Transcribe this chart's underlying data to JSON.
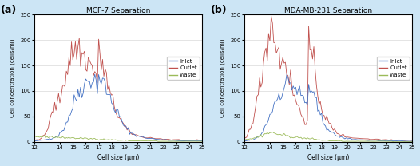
{
  "title_a": "MCF-7 Separation",
  "title_b": "MDA-MB-231 Separation",
  "label_a": "(a)",
  "label_b": "(b)",
  "xlabel": "Cell size (μm)",
  "ylabel": "Cell concentration (cells/ml)",
  "ylim": [
    0,
    250
  ],
  "yticks": [
    0,
    50,
    100,
    150,
    200,
    250
  ],
  "xlim": [
    12,
    25
  ],
  "xticks": [
    12,
    14,
    15,
    16,
    17,
    18,
    19,
    20,
    21,
    22,
    23,
    24,
    25
  ],
  "legend_labels": [
    "Inlet",
    "Outlet",
    "Waste"
  ],
  "colors": {
    "inlet": "#4472c4",
    "outlet": "#c0504d",
    "waste": "#9bbb59"
  },
  "background_color": "#cce5f5",
  "plot_bg": "#ffffff",
  "grid_color": "#d0d0d0",
  "mcf7_x": [
    12.0,
    12.1,
    12.2,
    12.3,
    12.4,
    12.5,
    12.6,
    12.7,
    12.8,
    12.9,
    13.0,
    13.1,
    13.2,
    13.3,
    13.4,
    13.5,
    13.6,
    13.7,
    13.8,
    13.9,
    14.0,
    14.1,
    14.2,
    14.3,
    14.4,
    14.5,
    14.6,
    14.7,
    14.8,
    14.9,
    15.0,
    15.1,
    15.2,
    15.3,
    15.4,
    15.5,
    15.6,
    15.7,
    15.8,
    15.9,
    16.0,
    16.1,
    16.2,
    16.3,
    16.4,
    16.5,
    16.6,
    16.7,
    16.8,
    16.9,
    17.0,
    17.1,
    17.2,
    17.3,
    17.4,
    17.5,
    17.6,
    17.7,
    17.8,
    17.9,
    18.0,
    18.1,
    18.2,
    18.3,
    18.4,
    18.5,
    18.6,
    18.7,
    18.8,
    18.9,
    19.0,
    19.1,
    19.2,
    19.3,
    19.4,
    19.5,
    19.6,
    19.7,
    19.8,
    19.9,
    20.0,
    20.2,
    20.4,
    20.6,
    20.8,
    21.0,
    21.2,
    21.4,
    21.6,
    21.8,
    22.0,
    22.2,
    22.4,
    22.6,
    22.8,
    23.0,
    23.2,
    23.4,
    23.6,
    23.8,
    24.0,
    24.2,
    24.4,
    24.6,
    24.8,
    25.0
  ],
  "mcf7_inlet": [
    2,
    2,
    2,
    2,
    3,
    3,
    3,
    3,
    4,
    4,
    5,
    5,
    6,
    6,
    7,
    8,
    9,
    10,
    11,
    13,
    16,
    19,
    22,
    26,
    32,
    38,
    44,
    50,
    56,
    62,
    70,
    78,
    85,
    90,
    95,
    100,
    105,
    108,
    110,
    112,
    115,
    118,
    120,
    122,
    124,
    125,
    123,
    120,
    118,
    115,
    128,
    125,
    122,
    118,
    113,
    108,
    102,
    96,
    90,
    85,
    80,
    75,
    70,
    65,
    60,
    55,
    50,
    45,
    40,
    35,
    30,
    27,
    25,
    22,
    20,
    18,
    16,
    15,
    14,
    13,
    12,
    10,
    9,
    8,
    7,
    7,
    6,
    5,
    5,
    4,
    4,
    4,
    3,
    3,
    3,
    3,
    2,
    2,
    2,
    2,
    2,
    2,
    2,
    2,
    2,
    2
  ],
  "mcf7_outlet": [
    3,
    3,
    4,
    4,
    5,
    6,
    8,
    10,
    13,
    17,
    22,
    30,
    38,
    48,
    55,
    62,
    68,
    72,
    75,
    78,
    85,
    95,
    108,
    118,
    128,
    138,
    148,
    158,
    165,
    170,
    175,
    178,
    182,
    185,
    183,
    180,
    177,
    172,
    168,
    165,
    162,
    160,
    158,
    155,
    150,
    145,
    140,
    135,
    130,
    125,
    170,
    165,
    160,
    152,
    143,
    133,
    122,
    112,
    102,
    93,
    85,
    78,
    72,
    65,
    58,
    52,
    48,
    43,
    38,
    34,
    30,
    27,
    24,
    22,
    20,
    18,
    16,
    15,
    14,
    13,
    12,
    11,
    10,
    9,
    8,
    8,
    7,
    7,
    6,
    6,
    5,
    5,
    5,
    4,
    4,
    4,
    4,
    3,
    3,
    3,
    3,
    3,
    3,
    3,
    3,
    3
  ],
  "mcf7_waste": [
    10,
    10,
    10,
    10,
    10,
    10,
    10,
    10,
    10,
    10,
    10,
    10,
    10,
    10,
    10,
    9,
    9,
    9,
    9,
    9,
    8,
    8,
    8,
    8,
    8,
    8,
    8,
    8,
    8,
    8,
    8,
    7,
    7,
    7,
    7,
    7,
    7,
    7,
    7,
    7,
    6,
    6,
    6,
    6,
    6,
    6,
    6,
    6,
    5,
    5,
    5,
    5,
    5,
    5,
    5,
    5,
    4,
    4,
    4,
    4,
    4,
    4,
    4,
    4,
    3,
    3,
    3,
    3,
    3,
    3,
    3,
    3,
    3,
    3,
    2,
    2,
    2,
    2,
    2,
    2,
    2,
    2,
    2,
    2,
    2,
    2,
    2,
    2,
    1,
    1,
    1,
    1,
    1,
    1,
    1,
    1,
    1,
    1,
    1,
    1,
    1,
    1,
    1,
    1,
    1,
    1
  ],
  "mda_x": [
    12.0,
    12.1,
    12.2,
    12.3,
    12.4,
    12.5,
    12.6,
    12.7,
    12.8,
    12.9,
    13.0,
    13.1,
    13.2,
    13.3,
    13.4,
    13.5,
    13.6,
    13.7,
    13.8,
    13.9,
    14.0,
    14.1,
    14.2,
    14.3,
    14.4,
    14.5,
    14.6,
    14.7,
    14.8,
    14.9,
    15.0,
    15.1,
    15.2,
    15.3,
    15.4,
    15.5,
    15.6,
    15.7,
    15.8,
    15.9,
    16.0,
    16.1,
    16.2,
    16.3,
    16.4,
    16.5,
    16.6,
    16.7,
    16.8,
    16.9,
    17.0,
    17.1,
    17.2,
    17.3,
    17.4,
    17.5,
    17.6,
    17.7,
    17.8,
    17.9,
    18.0,
    18.1,
    18.2,
    18.3,
    18.4,
    18.5,
    18.6,
    18.7,
    18.8,
    18.9,
    19.0,
    19.1,
    19.2,
    19.3,
    19.4,
    19.5,
    19.6,
    19.7,
    19.8,
    19.9,
    20.0,
    20.2,
    20.4,
    20.6,
    20.8,
    21.0,
    21.2,
    21.4,
    21.6,
    21.8,
    22.0,
    22.2,
    22.4,
    22.6,
    22.8,
    23.0,
    23.2,
    23.4,
    23.6,
    23.8,
    24.0,
    24.2,
    24.4,
    24.6,
    24.8,
    25.0
  ],
  "mda_inlet": [
    2,
    2,
    2,
    3,
    3,
    3,
    4,
    4,
    5,
    6,
    8,
    10,
    12,
    15,
    18,
    22,
    28,
    34,
    40,
    46,
    52,
    58,
    65,
    72,
    78,
    84,
    89,
    93,
    97,
    100,
    104,
    108,
    112,
    115,
    117,
    118,
    116,
    113,
    110,
    107,
    104,
    101,
    98,
    95,
    92,
    88,
    84,
    80,
    76,
    72,
    112,
    106,
    100,
    93,
    86,
    79,
    72,
    65,
    58,
    52,
    46,
    41,
    37,
    33,
    29,
    26,
    23,
    20,
    18,
    16,
    14,
    13,
    12,
    11,
    10,
    9,
    8,
    8,
    7,
    7,
    6,
    6,
    5,
    5,
    4,
    4,
    4,
    3,
    3,
    3,
    3,
    3,
    2,
    2,
    2,
    2,
    2,
    2,
    2,
    2,
    2,
    2,
    1,
    1,
    1,
    1
  ],
  "mda_outlet": [
    5,
    7,
    10,
    15,
    22,
    30,
    38,
    46,
    55,
    65,
    78,
    92,
    108,
    125,
    140,
    155,
    170,
    185,
    200,
    215,
    228,
    232,
    225,
    215,
    205,
    195,
    182,
    170,
    158,
    147,
    175,
    168,
    158,
    148,
    138,
    128,
    118,
    108,
    98,
    90,
    82,
    75,
    68,
    62,
    57,
    52,
    48,
    44,
    40,
    37,
    195,
    185,
    172,
    158,
    143,
    128,
    113,
    100,
    88,
    78,
    69,
    62,
    55,
    49,
    44,
    39,
    35,
    32,
    28,
    25,
    22,
    20,
    18,
    16,
    15,
    14,
    13,
    12,
    11,
    10,
    10,
    9,
    8,
    8,
    7,
    7,
    6,
    6,
    6,
    5,
    5,
    5,
    5,
    4,
    4,
    4,
    4,
    4,
    3,
    3,
    4,
    4,
    3,
    3,
    3,
    3
  ],
  "mda_waste": [
    5,
    5,
    5,
    5,
    6,
    6,
    6,
    7,
    7,
    8,
    9,
    10,
    11,
    12,
    13,
    14,
    15,
    16,
    17,
    17,
    18,
    18,
    17,
    17,
    16,
    16,
    15,
    15,
    14,
    14,
    13,
    13,
    12,
    12,
    11,
    11,
    10,
    10,
    10,
    9,
    9,
    9,
    8,
    8,
    8,
    8,
    7,
    7,
    7,
    7,
    6,
    6,
    6,
    6,
    5,
    5,
    5,
    4,
    4,
    4,
    3,
    3,
    3,
    3,
    3,
    3,
    2,
    2,
    2,
    2,
    2,
    2,
    2,
    2,
    2,
    2,
    1,
    1,
    1,
    1,
    1,
    1,
    1,
    1,
    1,
    1,
    1,
    1,
    1,
    1,
    1,
    1,
    1,
    1,
    1,
    1,
    1,
    1,
    0,
    0,
    0,
    0,
    0,
    0,
    0,
    0
  ]
}
